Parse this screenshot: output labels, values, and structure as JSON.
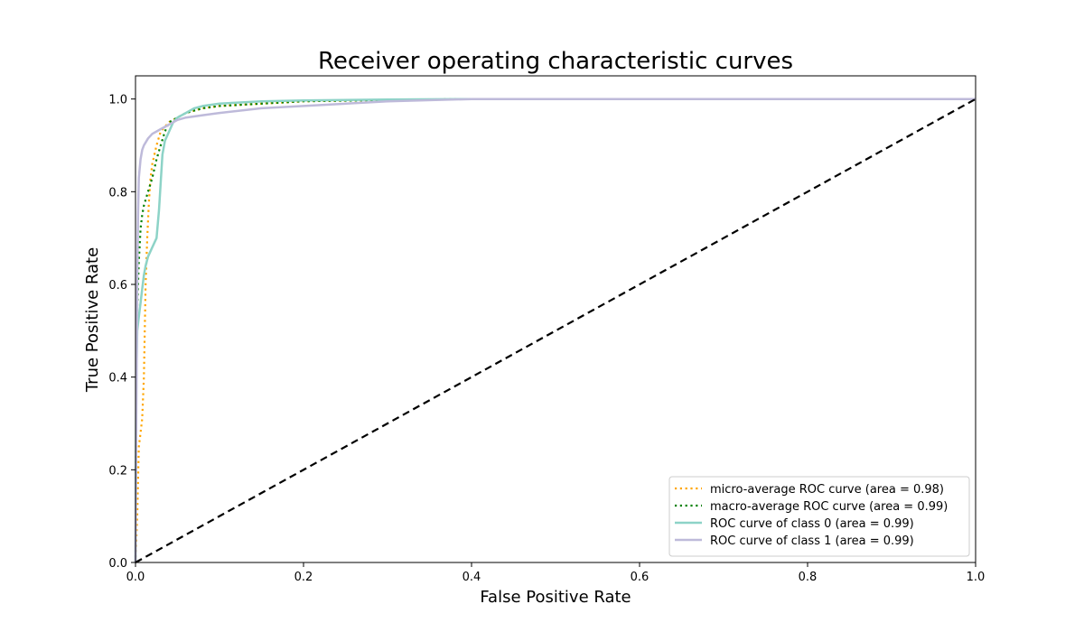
{
  "chart_data": {
    "type": "line",
    "title": "Receiver operating characteristic curves",
    "xlabel": "False Positive Rate",
    "ylabel": "True Positive Rate",
    "xlim": [
      0.0,
      1.0
    ],
    "ylim": [
      0.0,
      1.05
    ],
    "xticks": [
      "0.0",
      "0.2",
      "0.4",
      "0.6",
      "0.8",
      "1.0"
    ],
    "yticks": [
      "0.0",
      "0.2",
      "0.4",
      "0.6",
      "0.8",
      "1.0"
    ],
    "grid": false,
    "legend_position": "lower-right",
    "series": [
      {
        "name": "micro-average ROC curve (area = 0.98)",
        "color": "#ffa500",
        "style": "dotted",
        "x": [
          0.0,
          0.002,
          0.004,
          0.006,
          0.008,
          0.01,
          0.012,
          0.014,
          0.016,
          0.018,
          0.02,
          0.025,
          0.03,
          0.04,
          0.05,
          0.06,
          0.08,
          0.1,
          0.15,
          0.2,
          0.3,
          0.4,
          0.6,
          0.8,
          1.0
        ],
        "y": [
          0.0,
          0.1,
          0.25,
          0.28,
          0.31,
          0.4,
          0.6,
          0.7,
          0.78,
          0.83,
          0.86,
          0.9,
          0.93,
          0.95,
          0.96,
          0.97,
          0.98,
          0.985,
          0.99,
          0.995,
          0.998,
          1.0,
          1.0,
          1.0,
          1.0
        ]
      },
      {
        "name": "macro-average ROC curve (area = 0.99)",
        "color": "#008000",
        "style": "dotted",
        "x": [
          0.0,
          0.001,
          0.002,
          0.004,
          0.006,
          0.008,
          0.01,
          0.015,
          0.02,
          0.025,
          0.03,
          0.035,
          0.04,
          0.05,
          0.06,
          0.08,
          0.1,
          0.15,
          0.2,
          0.3,
          0.4,
          0.6,
          0.8,
          1.0
        ],
        "y": [
          0.0,
          0.4,
          0.55,
          0.65,
          0.72,
          0.75,
          0.77,
          0.8,
          0.83,
          0.87,
          0.9,
          0.93,
          0.95,
          0.96,
          0.97,
          0.98,
          0.985,
          0.99,
          0.995,
          0.998,
          1.0,
          1.0,
          1.0,
          1.0
        ]
      },
      {
        "name": "ROC curve of class 0 (area = 0.99)",
        "color": "#8dd3c7",
        "style": "solid",
        "x": [
          0.0,
          0.001,
          0.002,
          0.004,
          0.006,
          0.008,
          0.01,
          0.012,
          0.015,
          0.02,
          0.025,
          0.028,
          0.03,
          0.032,
          0.035,
          0.04,
          0.045,
          0.05,
          0.06,
          0.07,
          0.08,
          0.1,
          0.15,
          0.2,
          0.3,
          0.4,
          0.6,
          0.8,
          1.0
        ],
        "y": [
          0.0,
          0.4,
          0.5,
          0.53,
          0.56,
          0.59,
          0.62,
          0.64,
          0.66,
          0.68,
          0.7,
          0.76,
          0.82,
          0.88,
          0.91,
          0.93,
          0.95,
          0.96,
          0.97,
          0.98,
          0.985,
          0.99,
          0.995,
          0.997,
          0.999,
          1.0,
          1.0,
          1.0,
          1.0
        ]
      },
      {
        "name": "ROC curve of class 1 (area = 0.99)",
        "color": "#bebada",
        "style": "solid",
        "x": [
          0.0,
          0.001,
          0.002,
          0.003,
          0.004,
          0.006,
          0.008,
          0.01,
          0.015,
          0.02,
          0.025,
          0.03,
          0.035,
          0.04,
          0.05,
          0.06,
          0.08,
          0.1,
          0.15,
          0.2,
          0.3,
          0.4,
          0.6,
          0.8,
          1.0
        ],
        "y": [
          0.0,
          0.3,
          0.6,
          0.75,
          0.83,
          0.87,
          0.89,
          0.9,
          0.915,
          0.925,
          0.93,
          0.935,
          0.94,
          0.945,
          0.955,
          0.96,
          0.965,
          0.97,
          0.98,
          0.985,
          0.995,
          1.0,
          1.0,
          1.0,
          1.0
        ]
      },
      {
        "name": "",
        "color": "#000000",
        "style": "dashed",
        "x": [
          0.0,
          1.0
        ],
        "y": [
          0.0,
          1.0
        ]
      }
    ]
  }
}
